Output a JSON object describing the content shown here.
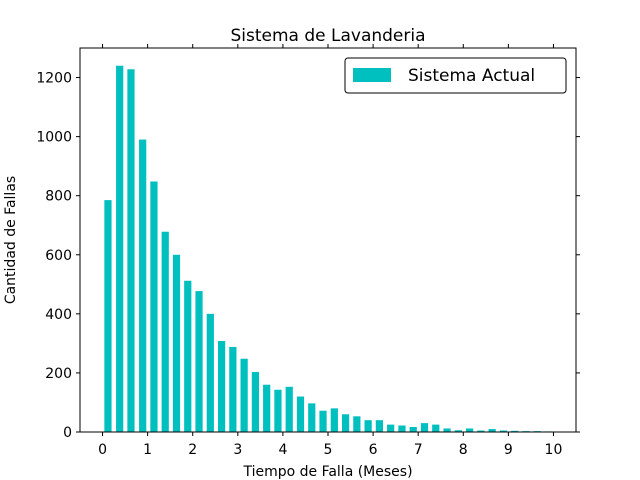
{
  "chart_data": {
    "type": "bar",
    "title": "Sistema de Lavanderia",
    "xlabel": "Tiempo de Falla (Meses)",
    "ylabel": "Cantidad de Fallas",
    "xlim": [
      -0.5,
      10.5
    ],
    "ylim": [
      0,
      1300
    ],
    "xticks": [
      0,
      1,
      2,
      3,
      4,
      5,
      6,
      7,
      8,
      9,
      10
    ],
    "yticks": [
      0,
      200,
      400,
      600,
      800,
      1000,
      1200
    ],
    "bar_width": 0.16,
    "bar_color": "#00bfbf",
    "legend_position": "top-right",
    "grid": false,
    "series": [
      {
        "name": "Sistema Actual",
        "x": [
          0.12,
          0.38,
          0.63,
          0.89,
          1.14,
          1.39,
          1.64,
          1.89,
          2.14,
          2.39,
          2.64,
          2.89,
          3.14,
          3.39,
          3.64,
          3.89,
          4.14,
          4.39,
          4.64,
          4.89,
          5.14,
          5.39,
          5.64,
          5.89,
          6.14,
          6.39,
          6.64,
          6.89,
          7.14,
          7.39,
          7.64,
          7.89,
          8.14,
          8.39,
          8.64,
          8.89,
          9.14,
          9.39,
          9.64,
          9.89
        ],
        "values": [
          785,
          1240,
          1228,
          990,
          848,
          678,
          600,
          512,
          477,
          400,
          308,
          288,
          248,
          203,
          160,
          143,
          153,
          120,
          97,
          72,
          80,
          60,
          53,
          40,
          40,
          25,
          22,
          17,
          30,
          25,
          12,
          6,
          12,
          5,
          10,
          5,
          4,
          3,
          3,
          2
        ]
      }
    ]
  }
}
